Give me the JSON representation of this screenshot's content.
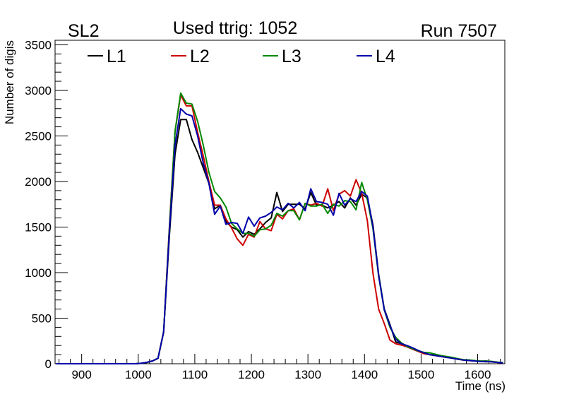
{
  "chart_data": {
    "type": "line",
    "header_left": "SL2",
    "title": "Used ttrig: 1052",
    "header_right": "Run 7507",
    "xlabel": "Time (ns)",
    "ylabel": "Number of digis",
    "xlim": [
      853,
      1648
    ],
    "ylim": [
      0,
      3550
    ],
    "x_ticks": [
      {
        "value": 900,
        "label": "900"
      },
      {
        "value": 1000,
        "label": "1000"
      },
      {
        "value": 1100,
        "label": "1100"
      },
      {
        "value": 1200,
        "label": "1200"
      },
      {
        "value": 1300,
        "label": "1300"
      },
      {
        "value": 1400,
        "label": "1400"
      },
      {
        "value": 1500,
        "label": "1500"
      },
      {
        "value": 1600,
        "label": "1600"
      }
    ],
    "y_ticks": [
      {
        "value": 0,
        "label": "0"
      },
      {
        "value": 500,
        "label": "500"
      },
      {
        "value": 1000,
        "label": "1000"
      },
      {
        "value": 1500,
        "label": "1500"
      },
      {
        "value": 2000,
        "label": "2000"
      },
      {
        "value": 2500,
        "label": "2500"
      },
      {
        "value": 3000,
        "label": "3000"
      },
      {
        "value": 3500,
        "label": "3500"
      }
    ],
    "grid": false,
    "legend_position": "top, horizontal",
    "x": [
      855,
      865,
      875,
      885,
      895,
      905,
      915,
      925,
      935,
      945,
      955,
      965,
      975,
      985,
      995,
      1005,
      1015,
      1025,
      1035,
      1045,
      1055,
      1065,
      1075,
      1085,
      1095,
      1105,
      1115,
      1125,
      1135,
      1145,
      1155,
      1165,
      1175,
      1185,
      1195,
      1205,
      1215,
      1225,
      1235,
      1245,
      1255,
      1265,
      1275,
      1285,
      1295,
      1305,
      1315,
      1325,
      1335,
      1345,
      1355,
      1365,
      1375,
      1385,
      1395,
      1405,
      1415,
      1425,
      1435,
      1445,
      1455,
      1465,
      1475,
      1485,
      1495,
      1505,
      1515,
      1525,
      1535,
      1545,
      1555,
      1565,
      1575,
      1585,
      1595,
      1605,
      1615,
      1625,
      1635,
      1645
    ],
    "series": [
      {
        "name": "L1",
        "color": "#000000",
        "values": [
          0,
          0,
          0,
          0,
          0,
          0,
          0,
          0,
          0,
          0,
          0,
          0,
          0,
          0,
          0,
          5,
          15,
          30,
          60,
          350,
          1400,
          2300,
          2680,
          2680,
          2460,
          2320,
          2150,
          1980,
          1700,
          1740,
          1560,
          1500,
          1470,
          1390,
          1450,
          1420,
          1480,
          1550,
          1600,
          1880,
          1670,
          1750,
          1750,
          1750,
          1700,
          1880,
          1740,
          1740,
          1710,
          1740,
          1780,
          1710,
          1820,
          1740,
          1860,
          1820,
          1520,
          980,
          600,
          430,
          240,
          220,
          195,
          170,
          145,
          120,
          100,
          95,
          80,
          70,
          65,
          50,
          40,
          40,
          32,
          25,
          22,
          25,
          15,
          10
        ]
      },
      {
        "name": "L2",
        "color": "#cc0000",
        "values": [
          0,
          0,
          0,
          0,
          0,
          0,
          0,
          0,
          0,
          0,
          0,
          0,
          0,
          0,
          0,
          5,
          15,
          30,
          60,
          350,
          1500,
          2550,
          2950,
          2830,
          2830,
          2540,
          2280,
          2000,
          1740,
          1740,
          1590,
          1490,
          1370,
          1300,
          1420,
          1390,
          1560,
          1480,
          1460,
          1640,
          1590,
          1680,
          1700,
          1580,
          1760,
          1740,
          1760,
          1730,
          1920,
          1680,
          1860,
          1900,
          1840,
          2020,
          1870,
          1570,
          990,
          600,
          440,
          260,
          220,
          205,
          185,
          160,
          135,
          110,
          100,
          90,
          80,
          70,
          65,
          50,
          40,
          35,
          30,
          25,
          30,
          20,
          15,
          10
        ]
      },
      {
        "name": "L3",
        "color": "#008800",
        "values": [
          0,
          0,
          0,
          0,
          0,
          0,
          0,
          0,
          0,
          0,
          0,
          0,
          0,
          0,
          0,
          5,
          15,
          30,
          60,
          350,
          1480,
          2550,
          2970,
          2860,
          2850,
          2660,
          2400,
          2100,
          1890,
          1820,
          1720,
          1540,
          1480,
          1430,
          1430,
          1400,
          1470,
          1480,
          1520,
          1650,
          1620,
          1680,
          1680,
          1580,
          1760,
          1730,
          1730,
          1750,
          1650,
          1750,
          1730,
          1790,
          1780,
          1690,
          1990,
          1800,
          1480,
          960,
          590,
          400,
          290,
          230,
          190,
          165,
          140,
          125,
          120,
          105,
          90,
          80,
          70,
          55,
          45,
          40,
          35,
          30,
          30,
          25,
          18,
          12
        ]
      },
      {
        "name": "L4",
        "color": "#0000aa",
        "values": [
          0,
          0,
          0,
          0,
          0,
          0,
          0,
          0,
          0,
          0,
          0,
          0,
          0,
          0,
          0,
          5,
          15,
          30,
          60,
          350,
          1450,
          2400,
          2800,
          2740,
          2720,
          2500,
          2200,
          1980,
          1640,
          1730,
          1530,
          1550,
          1540,
          1430,
          1610,
          1510,
          1600,
          1620,
          1660,
          1720,
          1690,
          1760,
          1710,
          1770,
          1680,
          1920,
          1780,
          1770,
          1750,
          1630,
          1870,
          1740,
          1810,
          1780,
          1890,
          1840,
          1500,
          970,
          590,
          420,
          270,
          220,
          200,
          175,
          145,
          120,
          100,
          90,
          80,
          70,
          60,
          50,
          40,
          35,
          30,
          25,
          25,
          20,
          15,
          10
        ]
      }
    ]
  }
}
